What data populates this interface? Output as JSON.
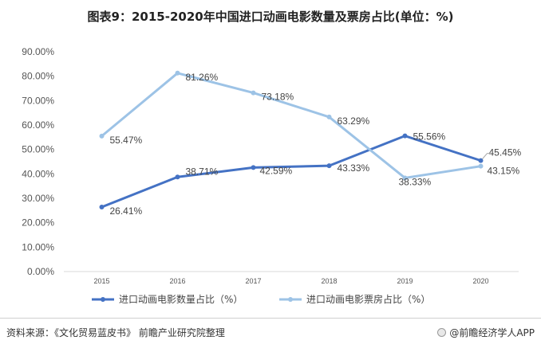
{
  "title": "图表9：2015-2020年中国进口动画电影数量及票房占比(单位：%)",
  "source": "资料来源：《文化贸易蓝皮书》 前瞻产业研究院整理",
  "brand": "@前瞻经济学人APP",
  "chart_data": {
    "type": "line",
    "title": "图表9：2015-2020年中国进口动画电影数量及票房占比(单位：%)",
    "categories": [
      "2015",
      "2016",
      "2017",
      "2018",
      "2019",
      "2020"
    ],
    "y_ticks": [
      "0.00%",
      "10.00%",
      "20.00%",
      "30.00%",
      "40.00%",
      "50.00%",
      "60.00%",
      "70.00%",
      "80.00%",
      "90.00%"
    ],
    "ylim": [
      0,
      90
    ],
    "grid": false,
    "legend_position": "bottom",
    "series": [
      {
        "name": "进口动画电影数量占比（%）",
        "color": "#4472c4",
        "values": [
          26.41,
          38.71,
          42.59,
          43.33,
          55.56,
          45.45
        ],
        "labels": [
          "26.41%",
          "38.71%",
          "42.59%",
          "43.33%",
          "55.56%",
          "45.45%"
        ]
      },
      {
        "name": "进口动画电影票房占比（%）",
        "color": "#9dc3e6",
        "values": [
          55.47,
          81.26,
          73.18,
          63.29,
          38.33,
          43.15
        ],
        "labels": [
          "55.47%",
          "81.26%",
          "73.18%",
          "63.29%",
          "38.33%",
          "43.15%"
        ]
      }
    ]
  }
}
